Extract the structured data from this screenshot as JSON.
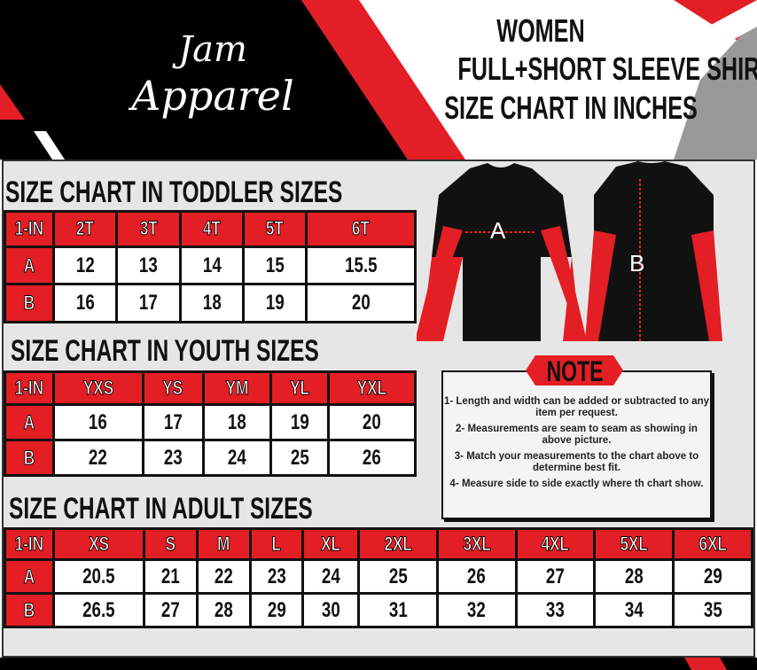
{
  "brand": {
    "logo_text": "Jam Apparel"
  },
  "header": {
    "line1": "WOMEN",
    "line2": "FULL+SHORT SLEEVE SHIRT",
    "line3": "SIZE CHART IN INCHES"
  },
  "colors": {
    "accent": "#e31e24",
    "dark": "#111111",
    "panel": "#e6e6e6"
  },
  "diagram": {
    "label_a": "A",
    "label_b": "B"
  },
  "toddler": {
    "title": "SIZE CHART IN TODDLER  SIZES",
    "headers": [
      "1-IN",
      "2T",
      "3T",
      "4T",
      "5T",
      "6T"
    ],
    "rows": [
      [
        "A",
        "12",
        "13",
        "14",
        "15",
        "15.5"
      ],
      [
        "B",
        "16",
        "17",
        "18",
        "19",
        "20"
      ]
    ]
  },
  "youth": {
    "title": "SIZE CHART IN YOUTH  SIZES",
    "headers": [
      "1-IN",
      "YXS",
      "YS",
      "YM",
      "YL",
      "YXL"
    ],
    "rows": [
      [
        "A",
        "16",
        "17",
        "18",
        "19",
        "20"
      ],
      [
        "B",
        "22",
        "23",
        "24",
        "25",
        "26"
      ]
    ]
  },
  "adult": {
    "title": "SIZE CHART IN ADULT SIZES",
    "headers": [
      "1-IN",
      "XS",
      "S",
      "M",
      "L",
      "XL",
      "2XL",
      "3XL",
      "4XL",
      "5XL",
      "6XL"
    ],
    "rows": [
      [
        "A",
        "20.5",
        "21",
        "22",
        "23",
        "24",
        "25",
        "26",
        "27",
        "28",
        "29"
      ],
      [
        "B",
        "26.5",
        "27",
        "28",
        "29",
        "30",
        "31",
        "32",
        "33",
        "34",
        "35"
      ]
    ]
  },
  "note": {
    "title": "NOTE",
    "items": [
      "1- Length and width can be added or subtracted to any item per request.",
      "2- Measurements are seam to seam  as showing in above picture.",
      "3- Match your measurements to the chart above to determine best fit.",
      "4- Measure side to side exactly where th chart show."
    ]
  }
}
